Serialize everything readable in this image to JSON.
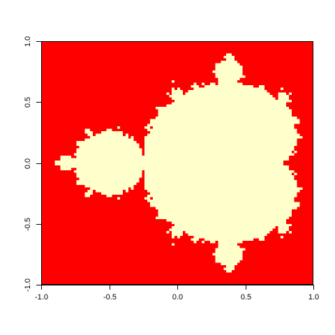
{
  "chart_data": {
    "type": "heatmap",
    "title": "",
    "xlabel": "",
    "ylabel": "",
    "xlim": [
      -1.0,
      1.0
    ],
    "ylim": [
      -1.0,
      1.0
    ],
    "grid": false,
    "colors": {
      "outside": "#ff0000",
      "inside": "#ffffcc"
    },
    "mandelbrot_center": [
      -0.5,
      0.0
    ],
    "x_ticks": [
      {
        "value": -1.0,
        "label": "-1.0"
      },
      {
        "value": -0.5,
        "label": "-0.5"
      },
      {
        "value": 0.0,
        "label": "0.0"
      },
      {
        "value": 0.5,
        "label": "0.5"
      },
      {
        "value": 1.0,
        "label": "1.0"
      }
    ],
    "y_ticks": [
      {
        "value": -1.0,
        "label": "-1.0"
      },
      {
        "value": -0.5,
        "label": "-0.5"
      },
      {
        "value": 0.0,
        "label": "0.0"
      },
      {
        "value": 0.5,
        "label": "0.5"
      },
      {
        "value": 1.0,
        "label": "1.0"
      }
    ]
  }
}
